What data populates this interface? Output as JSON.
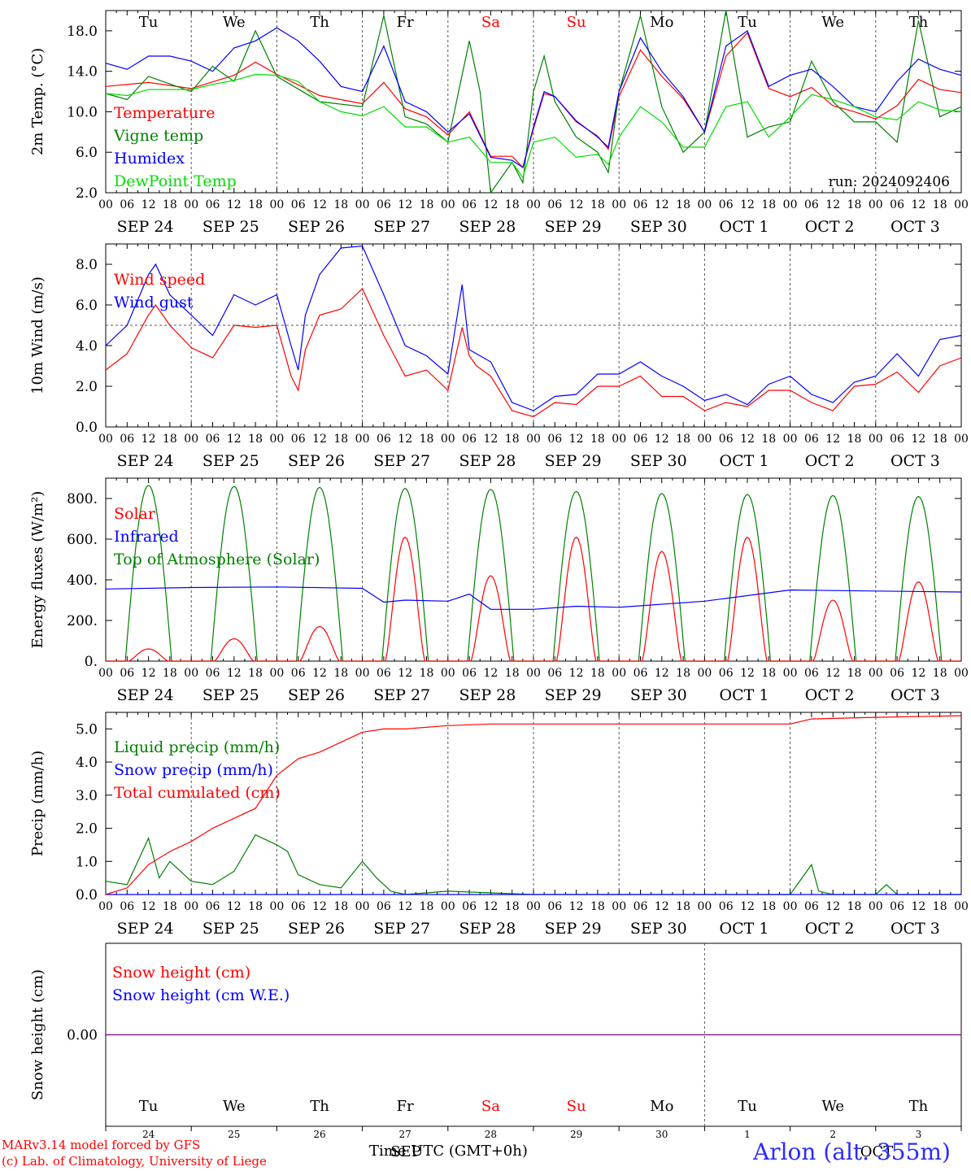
{
  "footer": {
    "model_line": "MARv3.14 model forced by GFS",
    "credit_line": "(c) Lab. of Climatology, University of Liege",
    "x_axis_title": "Time UTC (GMT+0h)",
    "station": "Arlon (alt. 355m)"
  },
  "day_labels": [
    {
      "dow": "Tu",
      "date": "SEP 24",
      "num": "24",
      "weekend": false
    },
    {
      "dow": "We",
      "date": "SEP 25",
      "num": "25",
      "weekend": false
    },
    {
      "dow": "Th",
      "date": "SEP 26",
      "num": "26",
      "weekend": false
    },
    {
      "dow": "Fr",
      "date": "SEP 27",
      "num": "27",
      "weekend": false
    },
    {
      "dow": "Sa",
      "date": "SEP 28",
      "num": "28",
      "weekend": true
    },
    {
      "dow": "Su",
      "date": "SEP 29",
      "num": "29",
      "weekend": true
    },
    {
      "dow": "Mo",
      "date": "SEP 30",
      "num": "30",
      "weekend": false
    },
    {
      "dow": "Tu",
      "date": "OCT 1",
      "num": "1",
      "weekend": false
    },
    {
      "dow": "We",
      "date": "OCT 2",
      "num": "2",
      "weekend": false
    },
    {
      "dow": "Th",
      "date": "OCT 3",
      "num": "3",
      "weekend": false
    }
  ],
  "hour_ticks": [
    "00",
    "06",
    "12",
    "18"
  ],
  "month_marker": {
    "sep": "SEP",
    "oct": "OCT"
  },
  "colors": {
    "red": "#ff0000",
    "green": "#008000",
    "blue": "#0000ff",
    "lightgreen": "#00dd00",
    "axis": "#000000",
    "snow": "#800080"
  },
  "chart_data": [
    {
      "id": "temperature",
      "type": "line",
      "x_unit": "hours since 2024-09-24 00 UTC",
      "ylabel": "2m Temp. (°C)",
      "ylim": [
        2,
        20
      ],
      "yticks": [
        2,
        6,
        10,
        14,
        18
      ],
      "ytick_labels": [
        "2.0",
        "6.0",
        "10.0",
        "14.0",
        "18.0"
      ],
      "show_dow": true,
      "annotation": "run: 2024092406",
      "legend": [
        {
          "label": "Temperature",
          "color": "#ff0000"
        },
        {
          "label": "Vigne temp",
          "color": "#008000"
        },
        {
          "label": "Humidex",
          "color": "#0000ff"
        },
        {
          "label": "DewPoint Temp",
          "color": "#00dd00"
        }
      ],
      "series": [
        {
          "name": "Temperature",
          "color": "#ff0000",
          "x": [
            0,
            12,
            24,
            36,
            42,
            48,
            60,
            72,
            78,
            84,
            90,
            96,
            102,
            108,
            114,
            117,
            120,
            123,
            126,
            132,
            138,
            141,
            144,
            150,
            156,
            162,
            168,
            174,
            180,
            186,
            192,
            198,
            204,
            210,
            216,
            222,
            228,
            234,
            240
          ],
          "y": [
            12.5,
            12.9,
            12.3,
            13.6,
            14.9,
            13.7,
            11.6,
            10.8,
            12.9,
            10.3,
            9.5,
            7.7,
            10,
            5.6,
            5.6,
            4.5,
            8.3,
            11.8,
            11.5,
            9,
            7.6,
            6.3,
            11.5,
            16.1,
            13.5,
            11.3,
            8,
            15.5,
            17.8,
            12.3,
            11.5,
            12.4,
            10.6,
            10,
            9.3,
            10.6,
            13.2,
            12.2,
            11.9
          ]
        },
        {
          "name": "Vigne temp",
          "color": "#008000",
          "x": [
            0,
            6,
            12,
            24,
            30,
            36,
            42,
            48,
            60,
            72,
            78,
            84,
            90,
            96,
            102,
            105,
            108,
            114,
            117,
            120,
            123,
            126,
            132,
            138,
            141,
            144,
            150,
            156,
            162,
            168,
            174,
            180,
            186,
            192,
            198,
            204,
            210,
            216,
            222,
            228,
            234,
            240
          ],
          "y": [
            11.8,
            11.2,
            13.5,
            12,
            14.5,
            13,
            18,
            13.5,
            11,
            10.5,
            19.5,
            9.5,
            8.8,
            7,
            17,
            12,
            2,
            5,
            3,
            12,
            15.5,
            11,
            7.5,
            6,
            4,
            12,
            19.5,
            10.5,
            6,
            8,
            20,
            7.5,
            8.5,
            9,
            15,
            11,
            9,
            9,
            7,
            19,
            9.5,
            10.5
          ]
        },
        {
          "name": "Humidex",
          "color": "#0000ff",
          "x": [
            0,
            6,
            12,
            18,
            24,
            30,
            36,
            42,
            48,
            54,
            60,
            66,
            72,
            78,
            84,
            90,
            96,
            102,
            108,
            114,
            117,
            120,
            123,
            126,
            132,
            138,
            141,
            144,
            150,
            156,
            162,
            168,
            174,
            180,
            186,
            192,
            198,
            204,
            210,
            216,
            222,
            228,
            234,
            240
          ],
          "y": [
            14.8,
            14.2,
            15.5,
            15.5,
            15,
            14,
            16.3,
            17,
            18.3,
            17,
            15,
            12.5,
            12,
            16.5,
            11,
            10,
            8,
            9.8,
            5.5,
            5.2,
            4.5,
            8.5,
            12,
            11.5,
            9.1,
            7.5,
            6.5,
            12,
            17.3,
            14,
            11.5,
            8,
            16.5,
            18,
            12.5,
            13.6,
            14.2,
            12.5,
            10.5,
            10,
            13,
            15.2,
            14.2,
            13.6
          ]
        },
        {
          "name": "DewPoint Temp",
          "color": "#00dd00",
          "x": [
            0,
            6,
            12,
            18,
            24,
            30,
            36,
            42,
            48,
            54,
            60,
            66,
            72,
            78,
            84,
            90,
            96,
            102,
            108,
            114,
            117,
            120,
            126,
            132,
            138,
            141,
            144,
            150,
            156,
            162,
            168,
            174,
            180,
            186,
            192,
            198,
            204,
            210,
            216,
            222,
            228,
            234,
            240
          ],
          "y": [
            11.8,
            11.6,
            12.2,
            12.2,
            12.2,
            12.7,
            13.1,
            13.7,
            13.6,
            13,
            11,
            10,
            9.6,
            10.5,
            8.5,
            8.5,
            7,
            7.5,
            5,
            5,
            3.5,
            7,
            7.5,
            5.5,
            5.8,
            4.8,
            7.5,
            10.5,
            9,
            6.5,
            6.5,
            10.5,
            11,
            7.5,
            9.5,
            11.7,
            11.2,
            10.5,
            9.5,
            9.2,
            11,
            10.2,
            10
          ]
        }
      ]
    },
    {
      "id": "wind",
      "type": "line",
      "x_unit": "hours since 2024-09-24 00 UTC",
      "ylabel": "10m Wind (m/s)",
      "ylim": [
        0,
        9
      ],
      "yticks": [
        0,
        2,
        4,
        6,
        8
      ],
      "ytick_labels": [
        "0.0",
        "2.0",
        "4.0",
        "6.0",
        "8.0"
      ],
      "reference_line": 5,
      "legend": [
        {
          "label": "Wind speed",
          "color": "#ff0000"
        },
        {
          "label": "Wind gust",
          "color": "#0000ff"
        }
      ],
      "series": [
        {
          "name": "Wind speed",
          "color": "#ff0000",
          "x": [
            0,
            6,
            12,
            14,
            18,
            24,
            30,
            36,
            42,
            48,
            52,
            54,
            56,
            60,
            66,
            72,
            78,
            84,
            90,
            96,
            100,
            102,
            104,
            108,
            114,
            120,
            126,
            132,
            138,
            144,
            150,
            156,
            162,
            168,
            174,
            180,
            186,
            192,
            198,
            204,
            210,
            216,
            222,
            228,
            234,
            240
          ],
          "y": [
            2.8,
            3.6,
            5.5,
            6,
            5,
            3.9,
            3.4,
            5,
            4.9,
            5,
            2.5,
            1.8,
            3.8,
            5.5,
            5.8,
            6.8,
            4.5,
            2.5,
            2.8,
            1.8,
            4.9,
            3.5,
            3,
            2.5,
            0.8,
            0.5,
            1.2,
            1.1,
            2,
            2,
            2.5,
            1.5,
            1.5,
            0.8,
            1.2,
            1,
            1.8,
            1.8,
            1.2,
            0.8,
            2,
            2.1,
            2.7,
            1.7,
            3,
            3.4
          ]
        },
        {
          "name": "Wind gust",
          "color": "#0000ff",
          "x": [
            0,
            6,
            12,
            14,
            18,
            24,
            30,
            36,
            42,
            48,
            52,
            54,
            56,
            60,
            66,
            72,
            78,
            84,
            90,
            96,
            100,
            102,
            104,
            108,
            114,
            120,
            126,
            132,
            138,
            144,
            150,
            156,
            162,
            168,
            174,
            180,
            186,
            192,
            198,
            204,
            210,
            216,
            222,
            228,
            234,
            240
          ],
          "y": [
            4,
            5,
            7.5,
            8,
            6.5,
            5.5,
            4.5,
            6.5,
            6,
            6.5,
            4,
            2.8,
            5.5,
            7.5,
            8.8,
            8.9,
            6.5,
            4,
            3.5,
            2.6,
            7,
            3.8,
            3.6,
            3.2,
            1.2,
            0.8,
            1.5,
            1.6,
            2.6,
            2.6,
            3.2,
            2.5,
            2,
            1.3,
            1.6,
            1.1,
            2.1,
            2.5,
            1.6,
            1.2,
            2.2,
            2.5,
            3.6,
            2.5,
            4.3,
            4.5
          ]
        }
      ]
    },
    {
      "id": "energy",
      "type": "line",
      "x_unit": "hours since 2024-09-24 00 UTC",
      "ylabel": "Energy fluxes (W/m²)",
      "ylim": [
        0,
        900
      ],
      "yticks": [
        0,
        200,
        400,
        600,
        800
      ],
      "ytick_labels": [
        "0.",
        "200.",
        "400.",
        "600.",
        "800."
      ],
      "legend": [
        {
          "label": "Solar",
          "color": "#ff0000"
        },
        {
          "label": "Infrared",
          "color": "#0000ff"
        },
        {
          "label": "Top of Atmosphere (Solar)",
          "color": "#008000"
        }
      ],
      "toa_peaks": [
        865,
        860,
        855,
        850,
        845,
        835,
        825,
        820,
        815,
        810
      ],
      "solar_peaks": [
        60,
        110,
        170,
        610,
        420,
        610,
        540,
        610,
        300,
        390
      ],
      "series": [
        {
          "name": "Infrared",
          "color": "#0000ff",
          "x": [
            0,
            24,
            48,
            72,
            78,
            84,
            96,
            102,
            108,
            120,
            132,
            144,
            168,
            192,
            216,
            240
          ],
          "y": [
            355,
            362,
            365,
            358,
            290,
            300,
            295,
            330,
            255,
            255,
            270,
            265,
            295,
            350,
            345,
            340
          ]
        }
      ]
    },
    {
      "id": "precip",
      "type": "line",
      "x_unit": "hours since 2024-09-24 00 UTC",
      "ylabel": "Precip (mm/h)",
      "ylim": [
        0,
        5.5
      ],
      "yticks": [
        0,
        1,
        2,
        3,
        4,
        5
      ],
      "ytick_labels": [
        "0.0",
        "1.0",
        "2.0",
        "3.0",
        "4.0",
        "5.0"
      ],
      "legend": [
        {
          "label": "Liquid precip (mm/h)",
          "color": "#008000"
        },
        {
          "label": "Snow precip (mm/h)",
          "color": "#0000ff"
        },
        {
          "label": "Total cumulated (cm)",
          "color": "#ff0000"
        }
      ],
      "series": [
        {
          "name": "Liquid precip (mm/h)",
          "color": "#008000",
          "x": [
            0,
            6,
            12,
            15,
            18,
            24,
            30,
            36,
            42,
            48,
            51,
            54,
            60,
            66,
            72,
            76,
            80,
            84,
            96,
            120,
            144,
            192,
            198,
            200,
            204,
            216,
            219,
            222,
            240
          ],
          "y": [
            0.4,
            0.3,
            1.7,
            0.5,
            1,
            0.4,
            0.3,
            0.7,
            1.8,
            1.5,
            1.3,
            0.6,
            0.3,
            0.2,
            1,
            0.5,
            0.1,
            0,
            0.1,
            0,
            0,
            0,
            0.9,
            0.1,
            0,
            0,
            0.3,
            0,
            0
          ]
        },
        {
          "name": "Snow precip (mm/h)",
          "color": "#0000ff",
          "x": [
            0,
            240
          ],
          "y": [
            0,
            0
          ]
        },
        {
          "name": "Total cumulated (cm)",
          "color": "#ff0000",
          "x": [
            0,
            6,
            12,
            18,
            24,
            30,
            36,
            42,
            48,
            54,
            60,
            66,
            72,
            78,
            84,
            96,
            108,
            120,
            144,
            168,
            192,
            198,
            216,
            240
          ],
          "y": [
            0,
            0.2,
            0.9,
            1.3,
            1.6,
            2,
            2.3,
            2.6,
            3.6,
            4.1,
            4.3,
            4.6,
            4.9,
            5,
            5,
            5.1,
            5.15,
            5.15,
            5.15,
            5.15,
            5.15,
            5.3,
            5.35,
            5.4
          ]
        }
      ]
    },
    {
      "id": "snow",
      "type": "line",
      "x_unit": "hours since 2024-09-24 00 UTC",
      "ylabel": "Snow height (cm)",
      "ylim": [
        -1,
        1
      ],
      "yticks": [
        0
      ],
      "ytick_labels": [
        "0.00"
      ],
      "legend": [
        {
          "label": "Snow height (cm)",
          "color": "#ff0000"
        },
        {
          "label": "Snow height (cm W.E.)",
          "color": "#0000ff"
        }
      ],
      "series": [
        {
          "name": "Snow height (cm)",
          "color": "#800080",
          "x": [
            0,
            240
          ],
          "y": [
            0,
            0
          ]
        }
      ]
    }
  ]
}
